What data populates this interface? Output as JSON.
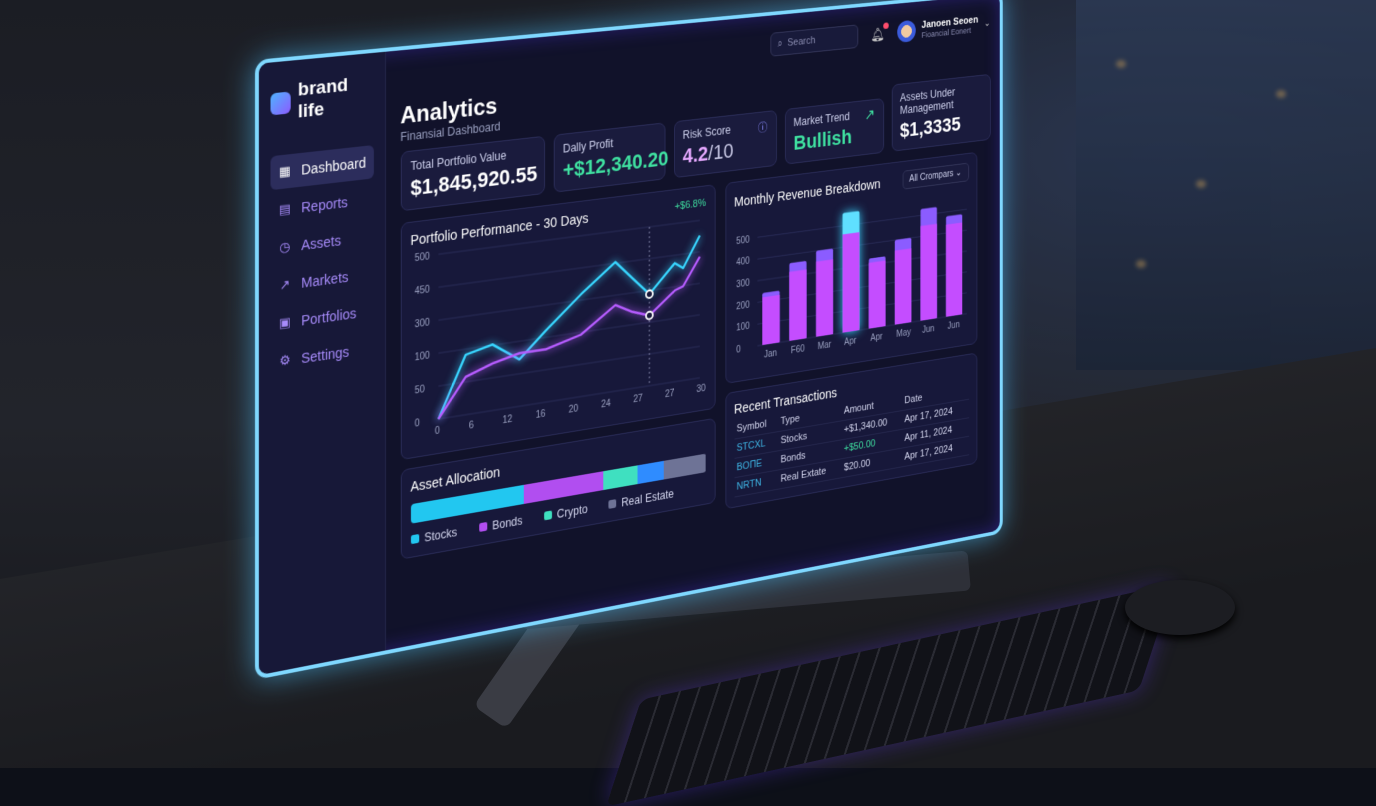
{
  "brand": "brand life",
  "sidebar": {
    "items": [
      {
        "label": "Dashboard",
        "icon": "grid-icon",
        "active": true
      },
      {
        "label": "Reports",
        "icon": "file-icon"
      },
      {
        "label": "Assets",
        "icon": "clock-icon"
      },
      {
        "label": "Markets",
        "icon": "trend-icon"
      },
      {
        "label": "Portfolios",
        "icon": "wallet-icon"
      },
      {
        "label": "Settings",
        "icon": "gear-icon"
      }
    ]
  },
  "header": {
    "title": "Analytics",
    "subtitle": "Finansial Dashboard",
    "search_placeholder": "Search",
    "notifications": 1,
    "user": {
      "name": "Janoen Seoen",
      "role": "Fioancial Eonert"
    }
  },
  "kpis": {
    "portfolio": {
      "label": "Total Portfolio Value",
      "value": "$1,845,920.55"
    },
    "profit": {
      "label": "Dally Profit",
      "value": "+$12,340.20"
    },
    "risk": {
      "label": "Risk Score",
      "value": "4.2",
      "suffix": "/10"
    },
    "trend": {
      "label": "Market Trend",
      "value": "Bullish"
    },
    "aum": {
      "label": "Assets Under Management",
      "value": "$1,3335"
    }
  },
  "colors": {
    "cyan": "#38d6ff",
    "purple": "#b65cff",
    "green": "#3fe0a0",
    "accent": "#8b5cff"
  },
  "chart_data": [
    {
      "type": "line",
      "title": "Portfolio Performance - 30 Days",
      "badge": "+$6.8%",
      "x": [
        0,
        3,
        6,
        9,
        12,
        16,
        20,
        22,
        24,
        27,
        28,
        30
      ],
      "x_ticks": [
        "0",
        "6",
        "12",
        "16",
        "20",
        "24",
        "27",
        "27",
        "30"
      ],
      "y_ticks": [
        "0",
        "50",
        "100",
        "300",
        "450",
        "500"
      ],
      "series": [
        {
          "color": "#38d6ff",
          "values": [
            0,
            190,
            210,
            150,
            230,
            330,
            420,
            360,
            300,
            390,
            370,
            470
          ]
        },
        {
          "color": "#b65cff",
          "values": [
            0,
            120,
            150,
            170,
            170,
            200,
            280,
            250,
            230,
            300,
            310,
            400
          ]
        }
      ],
      "ylim": [
        0,
        520
      ],
      "grid": true,
      "highlight_x": 24
    },
    {
      "type": "bar",
      "title": "Monthly Revenue Breakdown",
      "filter": "All Crompars",
      "categories": [
        "Jan",
        "F60",
        "Mar",
        "Apr",
        "Apr",
        "May",
        "Jun",
        "Jun"
      ],
      "y_ticks": [
        "0",
        "100",
        "200",
        "300",
        "400",
        "500"
      ],
      "values": [
        240,
        360,
        400,
        560,
        330,
        400,
        530,
        480
      ],
      "inner_values": [
        220,
        320,
        350,
        460,
        310,
        350,
        450,
        440
      ],
      "highlight": 3,
      "ylim": [
        0,
        600
      ]
    }
  ],
  "transactions": {
    "title": "Recent Transactions",
    "headers": [
      "Symbol",
      "Type",
      "Amount",
      "Date"
    ],
    "rows": [
      {
        "symbol": "STCXL",
        "type": "Stocks",
        "amount": "+$1,340.00",
        "date": "Apr 17, 2024"
      },
      {
        "symbol": "BOΠE",
        "type": "Bonds",
        "amount": "+$50.00",
        "date": "Apr 11, 2024",
        "positive": true
      },
      {
        "symbol": "NRTN",
        "type": "Real Extate",
        "amount": "$20.00",
        "date": "Apr 17, 2024"
      }
    ]
  },
  "allocation": {
    "title": "Asset Allocation",
    "segments": [
      {
        "label": "Stocks",
        "percent": 37,
        "color": "#22c7f0"
      },
      {
        "label": "Bonds",
        "percent": 27,
        "color": "#b14ef0"
      },
      {
        "label": "Crypto",
        "percent": 12,
        "color": "#3fe0c0"
      },
      {
        "label": "",
        "percent": 9,
        "color": "#2f8cff"
      },
      {
        "label": "Real Estate",
        "percent": 15,
        "color": "#6e7396"
      }
    ]
  }
}
